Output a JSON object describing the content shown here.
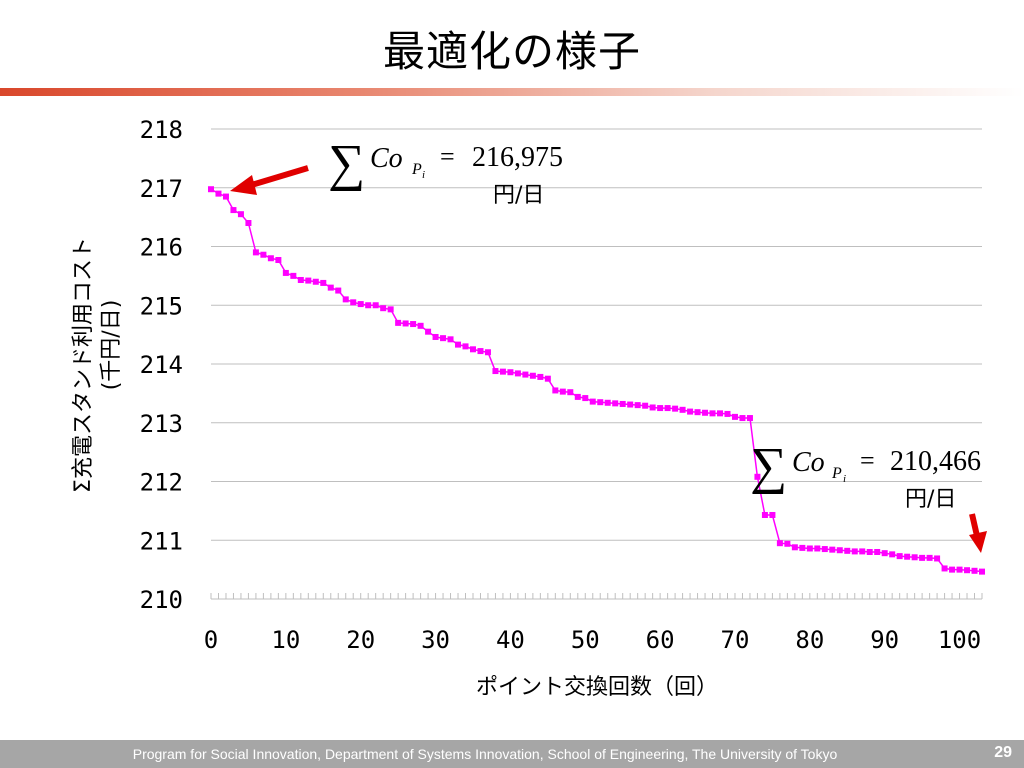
{
  "slide": {
    "title": "最適化の様子",
    "footer": "Program for Social Innovation, Department of Systems Innovation, School of Engineering, The University of Tokyo",
    "page_number": "29"
  },
  "colors": {
    "series": "#ff00ff",
    "arrow": "#e00000",
    "grid": "#bfbfbf",
    "title_rule": "#d9472b",
    "footer_bg": "#a6a6a6"
  },
  "chart_data": {
    "type": "line",
    "xlabel": "ポイント交換回数（回）",
    "ylabel_line1": "Σ充電スタンド利用コスト",
    "ylabel_line2": "(千円/日)",
    "xlim": [
      0,
      103
    ],
    "ylim": [
      210,
      218
    ],
    "x_ticks": [
      0,
      10,
      20,
      30,
      40,
      50,
      60,
      70,
      80,
      90,
      100
    ],
    "y_ticks": [
      210,
      211,
      212,
      213,
      214,
      215,
      216,
      217,
      218
    ],
    "grid": "horizontal",
    "series": [
      {
        "values": [
          216.975,
          216.9,
          216.85,
          216.62,
          216.55,
          216.4,
          215.9,
          215.86,
          215.8,
          215.77,
          215.55,
          215.5,
          215.43,
          215.42,
          215.4,
          215.38,
          215.3,
          215.25,
          215.1,
          215.05,
          215.02,
          215.0,
          215.0,
          214.95,
          214.93,
          214.7,
          214.69,
          214.68,
          214.65,
          214.55,
          214.46,
          214.44,
          214.42,
          214.33,
          214.3,
          214.25,
          214.22,
          214.2,
          213.88,
          213.87,
          213.86,
          213.84,
          213.82,
          213.8,
          213.78,
          213.75,
          213.55,
          213.53,
          213.52,
          213.44,
          213.42,
          213.36,
          213.35,
          213.34,
          213.33,
          213.32,
          213.31,
          213.3,
          213.29,
          213.26,
          213.25,
          213.25,
          213.24,
          213.22,
          213.19,
          213.18,
          213.17,
          213.16,
          213.16,
          213.15,
          213.1,
          213.08,
          213.08,
          212.08,
          211.43,
          211.43,
          210.95,
          210.94,
          210.88,
          210.87,
          210.86,
          210.86,
          210.85,
          210.84,
          210.83,
          210.82,
          210.81,
          210.81,
          210.8,
          210.8,
          210.78,
          210.76,
          210.73,
          210.72,
          210.71,
          210.7,
          210.7,
          210.69,
          210.52,
          210.5,
          210.5,
          210.49,
          210.48,
          210.466
        ]
      }
    ],
    "annotations": [
      {
        "sum_symbol": "∑",
        "Co": "Co",
        "sub": "P",
        "subsub": "i",
        "eq": "=",
        "value": "216,975",
        "unit": "円/日"
      },
      {
        "sum_symbol": "∑",
        "Co": "Co",
        "sub": "P",
        "subsub": "i",
        "eq": "=",
        "value": "210,466",
        "unit": "円/日"
      }
    ]
  }
}
